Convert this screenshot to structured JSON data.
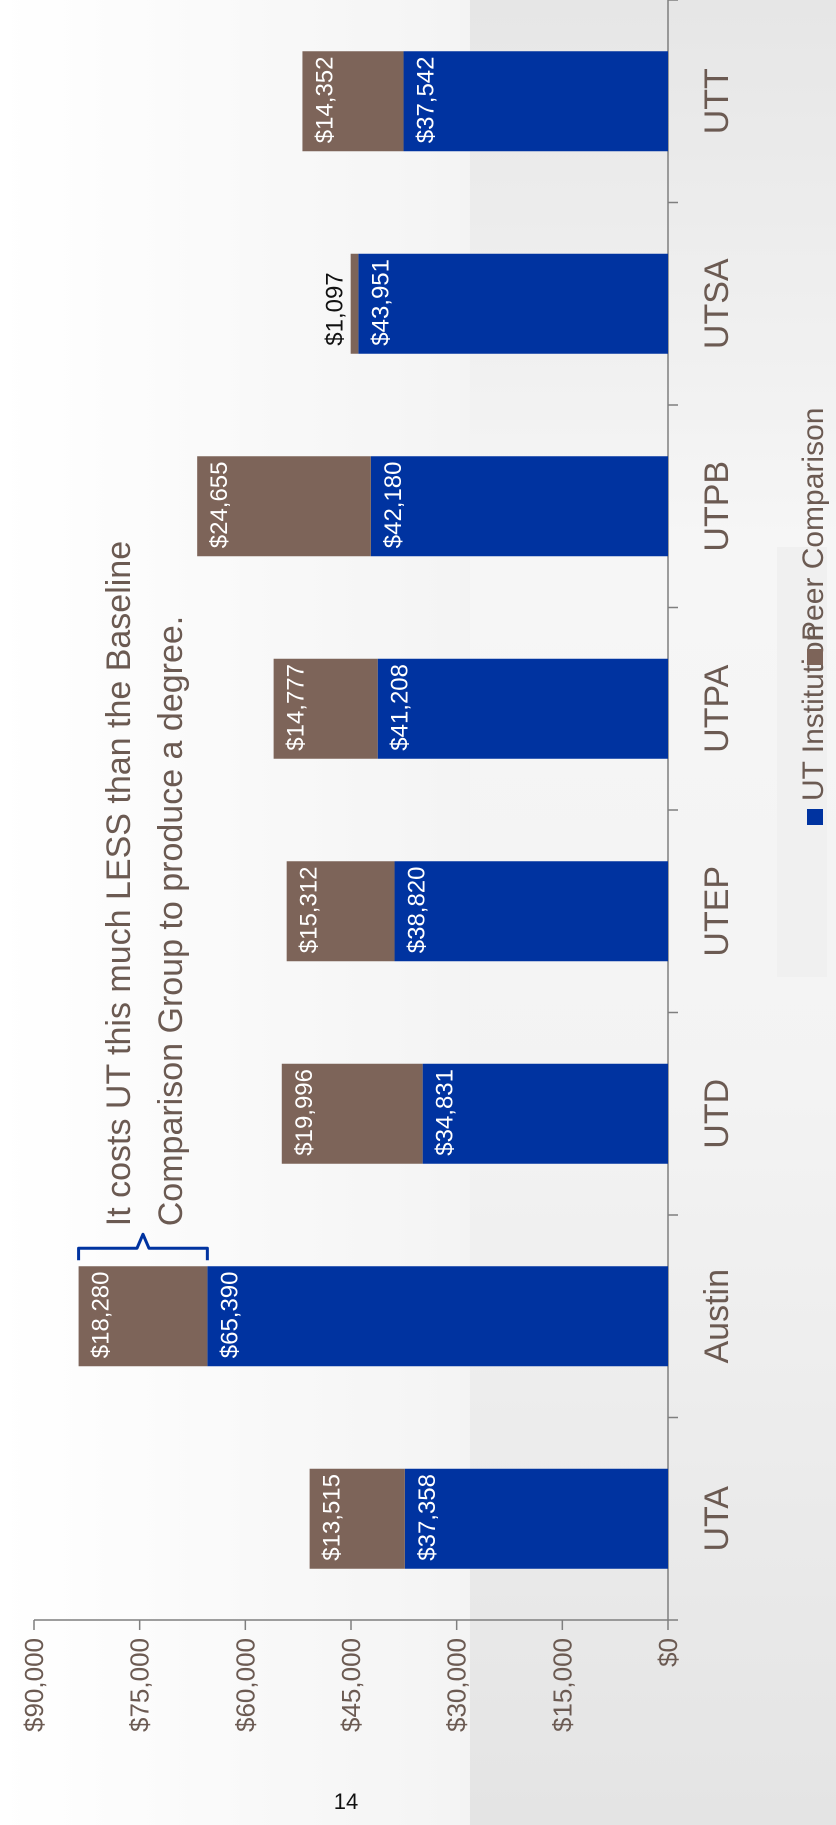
{
  "page_number": "14",
  "colors": {
    "ut_institution": "#0033a0",
    "peer_comparison": "#7d6459",
    "axis": "#7f7f7f",
    "text": "#6b5a52",
    "callout": "#0033a0"
  },
  "chart_data": {
    "type": "bar",
    "stacked": true,
    "categories": [
      "UTA",
      "Austin",
      "UTD",
      "UTEP",
      "UTPA",
      "UTPB",
      "UTSA",
      "UTT"
    ],
    "series": [
      {
        "name": "UT Institution",
        "values": [
          37358,
          65390,
          34831,
          38820,
          41208,
          42180,
          43951,
          37542
        ],
        "labels": [
          "$37,358",
          "$65,390",
          "$34,831",
          "$38,820",
          "$41,208",
          "$42,180",
          "$43,951",
          "$37,542"
        ]
      },
      {
        "name": "Peer Comparison",
        "values": [
          13515,
          18280,
          19996,
          15312,
          14777,
          24655,
          1097,
          14352
        ],
        "labels": [
          "$13,515",
          "$18,280",
          "$19,996",
          "$15,312",
          "$14,777",
          "$24,655",
          "$1,097",
          "$14,352"
        ]
      }
    ],
    "ylim": [
      0,
      90000
    ],
    "yticks": [
      "$0",
      "$15,000",
      "$30,000",
      "$45,000",
      "$60,000",
      "$75,000",
      "$90,000"
    ],
    "ytick_values": [
      0,
      15000,
      30000,
      45000,
      60000,
      75000,
      90000
    ],
    "grid": false,
    "legend_position": "bottom",
    "orientation": "rotated 90° counter-clockwise",
    "annotation": {
      "lines": [
        "It costs UT this much LESS than the Baseline",
        "Comparison Group to produce a degree."
      ],
      "target_category": "Austin"
    }
  }
}
